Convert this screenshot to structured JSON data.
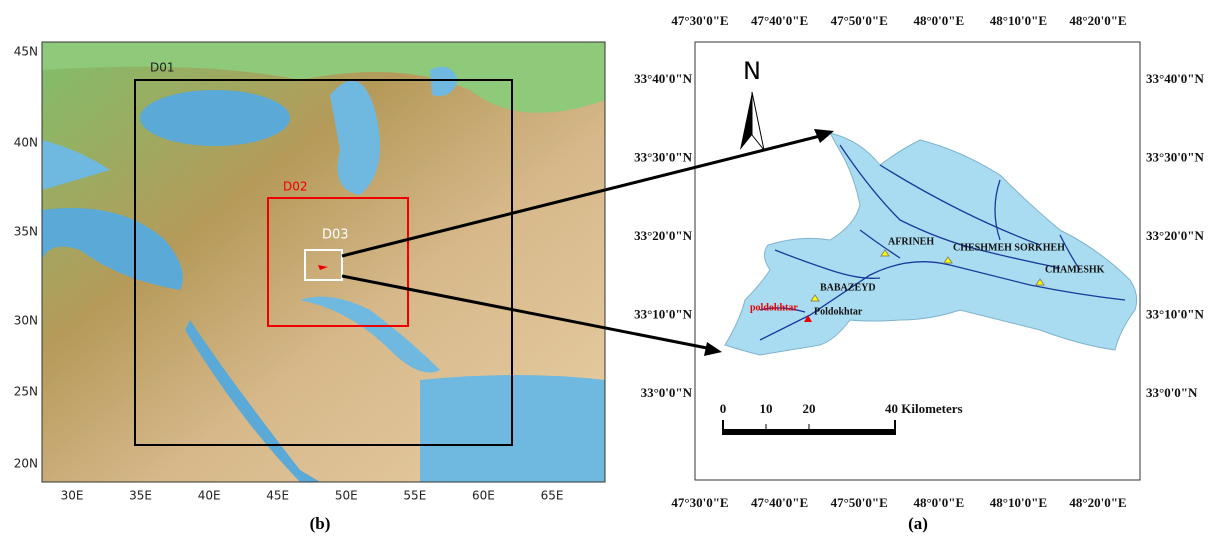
{
  "map_b": {
    "lat_labels": [
      "45N",
      "40N",
      "35N",
      "30N",
      "25N",
      "20N"
    ],
    "lon_labels": [
      "30E",
      "35E",
      "40E",
      "45E",
      "50E",
      "55E",
      "60E",
      "65E"
    ],
    "domains": [
      "D01",
      "D02",
      "D03"
    ],
    "caption": "(b)"
  },
  "map_a": {
    "lon_labels": [
      "47°30'0\"E",
      "47°40'0\"E",
      "47°50'0\"E",
      "48°0'0\"E",
      "48°10'0\"E",
      "48°20'0\"E"
    ],
    "lat_labels": [
      "33°40'0\"N",
      "33°30'0\"N",
      "33°20'0\"N",
      "33°10'0\"N",
      "33°0'0\"N"
    ],
    "north": "N",
    "stations": [
      "AFRINEH",
      "CHESHMEH SORKHEH",
      "CHAMESHK",
      "BABAZEYD",
      "Poldokhtar",
      "poldokhtar"
    ],
    "scale_labels": [
      "0",
      "10",
      "20",
      "40 Kilometers"
    ],
    "caption": "(a)"
  }
}
